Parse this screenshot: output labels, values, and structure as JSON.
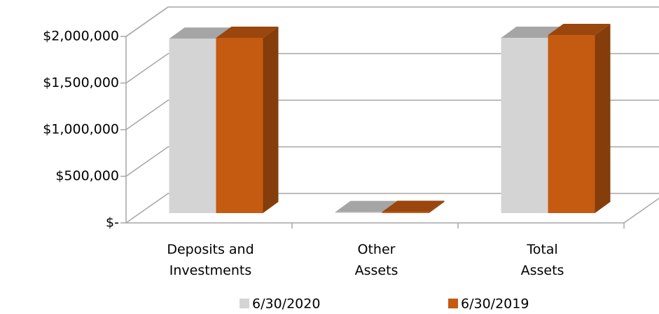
{
  "chart_data": {
    "type": "bar3d",
    "categories": [
      "Deposits and Investments",
      "Other Assets",
      "Total Assets"
    ],
    "series": [
      {
        "name": "6/30/2020",
        "color": "#d4d4d4",
        "values": [
          1870000,
          10000,
          1880000
        ]
      },
      {
        "name": "6/30/2019",
        "color": "#c55a11",
        "values": [
          1880000,
          12000,
          1910000
        ]
      }
    ],
    "ylim": [
      0,
      2000000
    ],
    "yticks": [
      {
        "value": 0,
        "label": "$-"
      },
      {
        "value": 500000,
        "label": "$500,000"
      },
      {
        "value": 1000000,
        "label": "$1,000,000"
      },
      {
        "value": 1500000,
        "label": "$1,500,000"
      },
      {
        "value": 2000000,
        "label": "$2,000,000"
      }
    ],
    "grid": true,
    "legend": "bottom"
  }
}
